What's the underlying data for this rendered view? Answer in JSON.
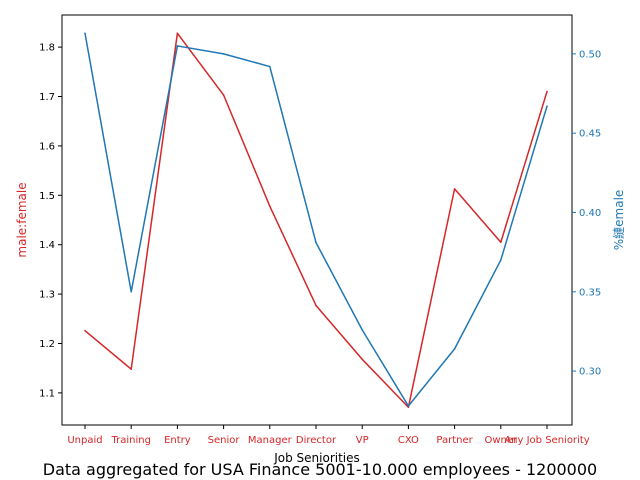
{
  "chart_data": {
    "type": "line",
    "categories": [
      "Unpaid",
      "Training",
      "Entry",
      "Senior",
      "Manager",
      "Director",
      "VP",
      "CXO",
      "Partner",
      "Owner",
      "Any Job Seniority"
    ],
    "xlabel": "Job Seniorities",
    "caption": "Data aggregated for USA Finance 5001-10.000 employees - 1200000",
    "series": [
      {
        "axis": "left",
        "color": "#d62728",
        "values": [
          1.226,
          1.148,
          1.828,
          1.703,
          1.478,
          1.277,
          1.168,
          1.071,
          1.513,
          1.405,
          1.71
        ]
      },
      {
        "axis": "right",
        "color": "#1f77b4",
        "values": [
          0.513,
          0.35,
          0.505,
          0.5,
          0.492,
          0.381,
          0.326,
          0.278,
          0.314,
          0.37,
          0.467
        ]
      }
    ],
    "y_left": {
      "label": "male:female",
      "color": "#d62728",
      "ylim": [
        1.035,
        1.865
      ],
      "ticks": [
        1.1,
        1.2,
        1.3,
        1.4,
        1.5,
        1.6,
        1.7,
        1.8
      ],
      "tick_labels": [
        "1.1",
        "1.2",
        "1.3",
        "1.4",
        "1.5",
        "1.6",
        "1.7",
        "1.8"
      ]
    },
    "y_right": {
      "label": "%縺emale",
      "color": "#1f77b4",
      "ylim": [
        0.266,
        0.5245
      ],
      "ticks": [
        0.3,
        0.35,
        0.4,
        0.45,
        0.5
      ],
      "tick_labels": [
        "0.30",
        "0.35",
        "0.40",
        "0.45",
        "0.50"
      ]
    },
    "x_tick_color": "#d62728",
    "grid": false
  }
}
